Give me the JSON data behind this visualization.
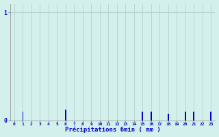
{
  "hours": [
    0,
    1,
    2,
    3,
    4,
    5,
    6,
    7,
    8,
    9,
    10,
    11,
    12,
    13,
    14,
    15,
    16,
    17,
    18,
    19,
    20,
    21,
    22,
    23
  ],
  "values": [
    0,
    0.08,
    0,
    0,
    0,
    0,
    0.1,
    0,
    0,
    0,
    0,
    0,
    0,
    0,
    0,
    0.08,
    0.08,
    0,
    0.06,
    0,
    0.08,
    0.08,
    0,
    0.08
  ],
  "bar_color": "#0000cc",
  "bg_color": "#d4f0ec",
  "grid_color": "#b0ccc8",
  "axis_color": "#888888",
  "text_color": "#0000cc",
  "xlabel": "Précipitations 6min ( mm )",
  "ylim": [
    0,
    1.08
  ],
  "yticks": [
    0,
    1
  ],
  "ytick_labels": [
    "0",
    "1"
  ],
  "xlim": [
    -0.5,
    23.5
  ],
  "figsize": [
    3.2,
    2.0
  ],
  "dpi": 100,
  "bar_width": 0.15
}
